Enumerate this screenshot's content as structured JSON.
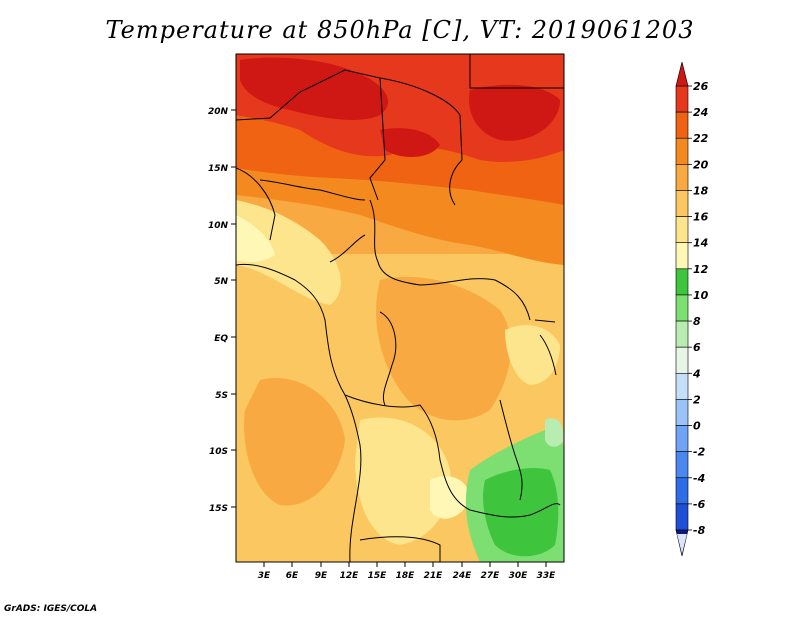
{
  "title": "Temperature at 850hPa [C], VT: 2019061203",
  "credit": "GrADS: IGES/COLA",
  "map": {
    "region": "Central / Southern Africa",
    "lon_range": [
      0,
      34.5
    ],
    "lat_range": [
      -20,
      25
    ],
    "lon_ticks": [
      "3E",
      "6E",
      "9E",
      "12E",
      "15E",
      "18E",
      "21E",
      "24E",
      "27E",
      "30E",
      "33E"
    ],
    "lat_ticks": [
      "20N",
      "15N",
      "10N",
      "5N",
      "EQ",
      "5S",
      "10S",
      "15S"
    ]
  },
  "colorbar": {
    "labels": [
      "26",
      "24",
      "22",
      "20",
      "18",
      "16",
      "14",
      "12",
      "10",
      "8",
      "6",
      "4",
      "2",
      "0",
      "-2",
      "-4",
      "-6",
      "-8"
    ],
    "colors": [
      "#ffffff",
      "#dce4fa",
      "#0b1880",
      "#1131b5",
      "#1f4fd6",
      "#2f6ce8",
      "#4a88f0",
      "#6ea4f3",
      "#9cc3f7",
      "#c6dff9",
      "#e6f5e6",
      "#b8ecb0",
      "#7ddf72",
      "#3ec53d",
      "#fff7b5",
      "#fde58d",
      "#fbc760",
      "#f9a941",
      "#f48a1f",
      "#f06313",
      "#e6381d",
      "#cf1713"
    ],
    "note": "colors listed bottom-to-top of bar (top 2 entries unused)"
  }
}
